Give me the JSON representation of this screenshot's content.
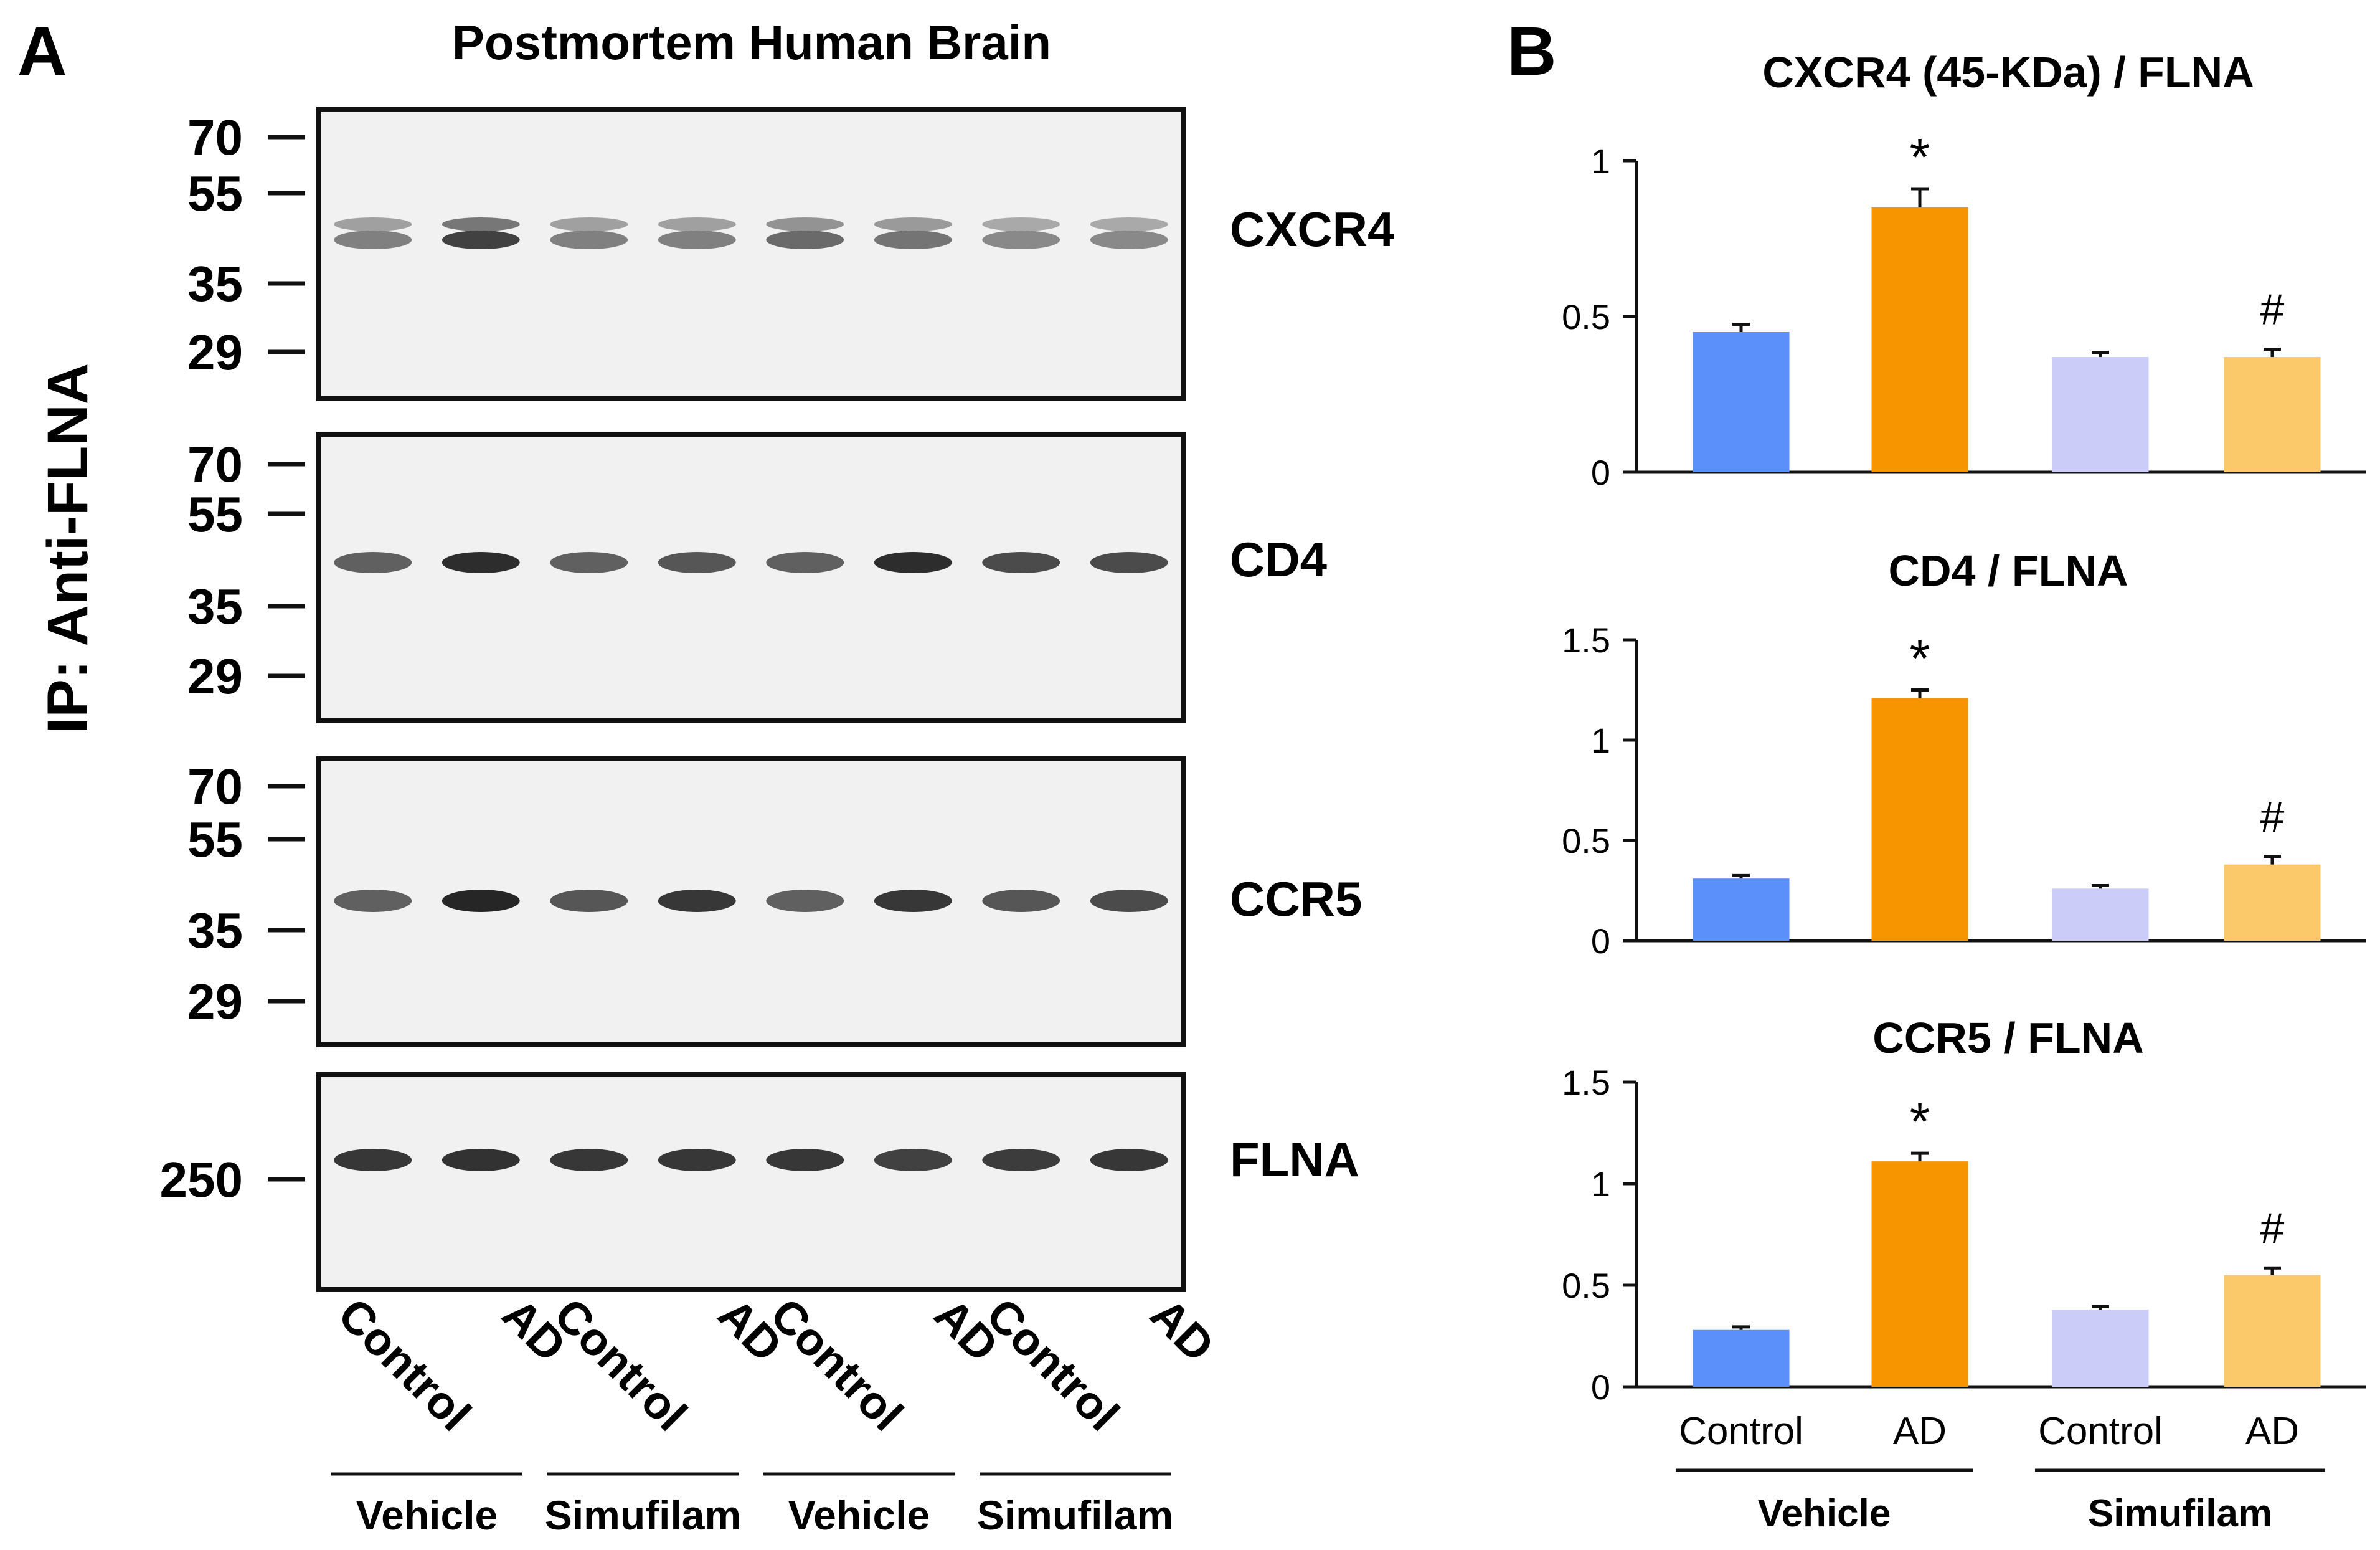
{
  "panel_a": {
    "label": "A",
    "title": "Postmortem Human Brain",
    "y_label": "IP: Anti-FLNA",
    "blots": [
      {
        "name": "CXCR4",
        "markers": [
          "70",
          "55",
          "35",
          "29"
        ]
      },
      {
        "name": "CD4",
        "markers": [
          "70",
          "55",
          "35",
          "29"
        ]
      },
      {
        "name": "CCR5",
        "markers": [
          "70",
          "55",
          "35",
          "29"
        ]
      },
      {
        "name": "FLNA",
        "markers": [
          "250"
        ]
      }
    ],
    "lanes": [
      "Control",
      "AD",
      "Control",
      "AD",
      "Control",
      "AD",
      "Control",
      "AD"
    ],
    "groups": [
      "Vehicle",
      "Simufilam",
      "Vehicle",
      "Simufilam"
    ]
  },
  "panel_b": {
    "label": "B"
  },
  "colors": {
    "control_vehicle": "#5b8ff9",
    "ad_vehicle": "#f79500",
    "control_simufilam": "#ccccf8",
    "ad_simufilam": "#fbc96a",
    "blot_band": "#222222"
  },
  "chart_data": [
    {
      "type": "bar",
      "title": "CXCR4 (45-KDa) / FLNA",
      "categories": [
        "Control",
        "AD",
        "Control",
        "AD"
      ],
      "groups": [
        "Vehicle",
        "Simufilam"
      ],
      "values": [
        0.45,
        0.85,
        0.37,
        0.37
      ],
      "errors": [
        0.025,
        0.06,
        0.015,
        0.025
      ],
      "annotations": [
        "",
        "*",
        "",
        "#"
      ],
      "ylim": [
        0,
        1
      ],
      "yticks": [
        0,
        0.5,
        1
      ],
      "ytick_labels": [
        "0",
        "0.5",
        "1"
      ]
    },
    {
      "type": "bar",
      "title": "CD4 / FLNA",
      "categories": [
        "Control",
        "AD",
        "Control",
        "AD"
      ],
      "groups": [
        "Vehicle",
        "Simufilam"
      ],
      "values": [
        0.31,
        1.21,
        0.26,
        0.38
      ],
      "errors": [
        0.015,
        0.04,
        0.015,
        0.04
      ],
      "annotations": [
        "",
        "*",
        "",
        "#"
      ],
      "ylim": [
        0,
        1.5
      ],
      "yticks": [
        0,
        0.5,
        1,
        1.5
      ],
      "ytick_labels": [
        "0",
        "0.5",
        "1",
        "1.5"
      ]
    },
    {
      "type": "bar",
      "title": "CCR5 / FLNA",
      "categories": [
        "Control",
        "AD",
        "Control",
        "AD"
      ],
      "groups": [
        "Vehicle",
        "Simufilam"
      ],
      "values": [
        0.28,
        1.11,
        0.38,
        0.55
      ],
      "errors": [
        0.015,
        0.04,
        0.015,
        0.035
      ],
      "annotations": [
        "",
        "*",
        "",
        "#"
      ],
      "ylim": [
        0,
        1.5
      ],
      "yticks": [
        0,
        0.5,
        1,
        1.5
      ],
      "ytick_labels": [
        "0",
        "0.5",
        "1",
        "1.5"
      ],
      "show_x_labels": true
    }
  ]
}
